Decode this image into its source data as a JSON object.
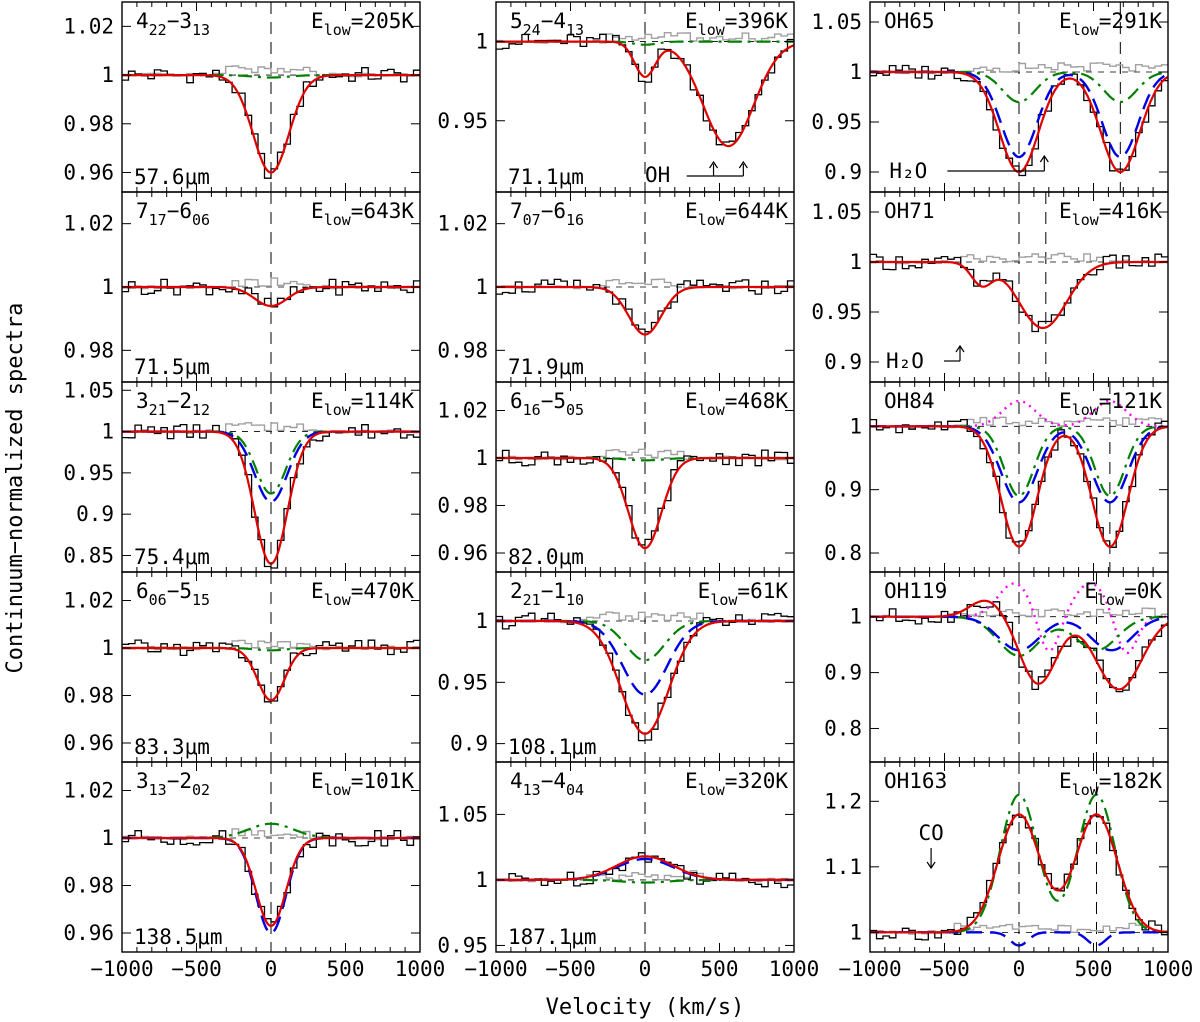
{
  "chart_data": {
    "type": "line",
    "ylabel": "Continuum−normalized spectra",
    "xlabel": "Velocity (km/s)",
    "xlim": [
      -1000,
      1000
    ],
    "xticks": [
      -1000,
      -500,
      0,
      500,
      1000
    ],
    "xtick_labels": [
      "−1000",
      "−500",
      "0",
      "500",
      "1000"
    ],
    "colors": {
      "observed": "#000000",
      "alt_profile": "#a0a0a0",
      "total_model": "#e00000",
      "blue_component": "#0000e0",
      "green_component": "#008000",
      "magenta_component": "#ff00ff"
    },
    "panels": [
      {
        "id": "p1",
        "col": 0,
        "row": 0,
        "label_main": "4",
        "label_sub1": "22",
        "label_sep": "−3",
        "label_sub2": "13",
        "elow_prefix": "E",
        "elow_sub": "low",
        "elow_value": "=205K",
        "wavelength": "57.6μm",
        "ylim": [
          0.952,
          1.03
        ],
        "yticks": [
          0.96,
          0.98,
          1,
          1.02
        ],
        "ytick_labels": [
          "0.96",
          "0.98",
          "1",
          "1.02"
        ],
        "vlines": [
          0
        ],
        "components": [
          {
            "role": "total",
            "depth": 0.04,
            "center": 0,
            "width": 120
          },
          {
            "role": "green",
            "depth": 0.001,
            "center": 0,
            "width": 120
          }
        ],
        "annotation": null
      },
      {
        "id": "p2",
        "col": 1,
        "row": 0,
        "label_main": "5",
        "label_sub1": "24",
        "label_sep": "−4",
        "label_sub2": "13",
        "elow_prefix": "E",
        "elow_sub": "low",
        "elow_value": "=396K",
        "wavelength": "71.1μm",
        "ylim": [
          0.905,
          1.025
        ],
        "yticks": [
          0.95,
          1
        ],
        "ytick_labels": [
          "0.95",
          "1"
        ],
        "vlines": [
          0
        ],
        "components": [
          {
            "role": "total",
            "depth": 0.022,
            "center": 0,
            "width": 70
          },
          {
            "role": "total",
            "depth": 0.066,
            "center": 560,
            "width": 170
          },
          {
            "role": "green",
            "depth": 0.002,
            "center": 0,
            "width": 80
          }
        ],
        "annotation": {
          "text": "OH",
          "kind": "oh-doublet"
        }
      },
      {
        "id": "p3",
        "col": 2,
        "row": 0,
        "label_main": "OH65",
        "elow_prefix": "E",
        "elow_sub": "low",
        "elow_value": "=291K",
        "wavelength": "",
        "ylim": [
          0.88,
          1.07
        ],
        "yticks": [
          0.9,
          0.95,
          1,
          1.05
        ],
        "ytick_labels": [
          "0.9",
          "0.95",
          "1",
          "1.05"
        ],
        "vlines": [
          0,
          680
        ],
        "components": [
          {
            "role": "total",
            "depth": 0.1,
            "center": 0,
            "width": 130
          },
          {
            "role": "total",
            "depth": 0.1,
            "center": 680,
            "width": 130
          },
          {
            "role": "blue",
            "depth": 0.085,
            "center": 0,
            "width": 120
          },
          {
            "role": "blue",
            "depth": 0.085,
            "center": 680,
            "width": 120
          },
          {
            "role": "green",
            "depth": 0.03,
            "center": 0,
            "width": 110
          },
          {
            "role": "green",
            "depth": 0.03,
            "center": 680,
            "width": 110
          }
        ],
        "annotation": {
          "text": "H₂O",
          "kind": "arrow-up-right"
        }
      },
      {
        "id": "p4",
        "col": 0,
        "row": 1,
        "label_main": "7",
        "label_sub1": "17",
        "label_sep": "−6",
        "label_sub2": "06",
        "elow_prefix": "E",
        "elow_sub": "low",
        "elow_value": "=643K",
        "wavelength": "71.5μm",
        "ylim": [
          0.97,
          1.03
        ],
        "yticks": [
          0.98,
          1,
          1.02
        ],
        "ytick_labels": [
          "0.98",
          "1",
          "1.02"
        ],
        "vlines": [
          0
        ],
        "components": [
          {
            "role": "total",
            "depth": 0.006,
            "center": 0,
            "width": 110
          }
        ],
        "annotation": null
      },
      {
        "id": "p5",
        "col": 1,
        "row": 1,
        "label_main": "7",
        "label_sub1": "07",
        "label_sep": "−6",
        "label_sub2": "16",
        "elow_prefix": "E",
        "elow_sub": "low",
        "elow_value": "=644K",
        "wavelength": "71.9μm",
        "ylim": [
          0.97,
          1.03
        ],
        "yticks": [
          0.98,
          1,
          1.02
        ],
        "ytick_labels": [
          "0.98",
          "1",
          "1.02"
        ],
        "vlines": [
          0
        ],
        "components": [
          {
            "role": "total",
            "depth": 0.015,
            "center": 0,
            "width": 110
          }
        ],
        "annotation": null
      },
      {
        "id": "p6",
        "col": 2,
        "row": 1,
        "label_main": "OH71",
        "elow_prefix": "E",
        "elow_sub": "low",
        "elow_value": "=416K",
        "wavelength": "",
        "ylim": [
          0.88,
          1.07
        ],
        "yticks": [
          0.9,
          0.95,
          1,
          1.05
        ],
        "ytick_labels": [
          "0.9",
          "0.95",
          "1",
          "1.05"
        ],
        "vlines": [
          0,
          180
        ],
        "components": [
          {
            "role": "total",
            "depth": 0.022,
            "center": -250,
            "width": 70
          },
          {
            "role": "total",
            "depth": 0.066,
            "center": 160,
            "width": 160
          }
        ],
        "annotation": {
          "text": "H₂O",
          "kind": "arrow-up-right"
        }
      },
      {
        "id": "p7",
        "col": 0,
        "row": 2,
        "label_main": "3",
        "label_sub1": "21",
        "label_sep": "−2",
        "label_sub2": "12",
        "elow_prefix": "E",
        "elow_sub": "low",
        "elow_value": "=114K",
        "wavelength": "75.4μm",
        "ylim": [
          0.83,
          1.06
        ],
        "yticks": [
          0.85,
          0.9,
          0.95,
          1,
          1.05
        ],
        "ytick_labels": [
          "0.85",
          "0.9",
          "0.95",
          "1",
          "1.05"
        ],
        "vlines": [
          0
        ],
        "components": [
          {
            "role": "total",
            "depth": 0.16,
            "center": 0,
            "width": 110
          },
          {
            "role": "blue",
            "depth": 0.085,
            "center": 0,
            "width": 110
          },
          {
            "role": "green",
            "depth": 0.075,
            "center": 0,
            "width": 100
          }
        ],
        "annotation": null
      },
      {
        "id": "p8",
        "col": 1,
        "row": 2,
        "label_main": "6",
        "label_sub1": "16",
        "label_sep": "−5",
        "label_sub2": "05",
        "elow_prefix": "E",
        "elow_sub": "low",
        "elow_value": "=468K",
        "wavelength": "82.0μm",
        "ylim": [
          0.952,
          1.032
        ],
        "yticks": [
          0.96,
          0.98,
          1,
          1.02
        ],
        "ytick_labels": [
          "0.96",
          "0.98",
          "1",
          "1.02"
        ],
        "vlines": [
          0
        ],
        "components": [
          {
            "role": "total",
            "depth": 0.038,
            "center": 0,
            "width": 110
          },
          {
            "role": "green",
            "depth": 0.001,
            "center": 0,
            "width": 120
          }
        ],
        "annotation": null
      },
      {
        "id": "p9",
        "col": 2,
        "row": 2,
        "label_main": "OH84",
        "elow_prefix": "E",
        "elow_sub": "low",
        "elow_value": "=121K",
        "wavelength": "",
        "ylim": [
          0.77,
          1.07
        ],
        "yticks": [
          0.8,
          0.9,
          1
        ],
        "ytick_labels": [
          "0.8",
          "0.9",
          "1"
        ],
        "vlines": [
          0,
          610
        ],
        "components": [
          {
            "role": "total",
            "depth": 0.19,
            "center": 0,
            "width": 120
          },
          {
            "role": "total",
            "depth": 0.19,
            "center": 610,
            "width": 120
          },
          {
            "role": "blue",
            "depth": 0.12,
            "center": 0,
            "width": 120
          },
          {
            "role": "blue",
            "depth": 0.12,
            "center": 610,
            "width": 120
          },
          {
            "role": "green",
            "depth": 0.11,
            "center": 0,
            "width": 100
          },
          {
            "role": "green",
            "depth": 0.11,
            "center": 610,
            "width": 100
          },
          {
            "role": "magenta",
            "depth": -0.04,
            "center": 0,
            "width": 110
          },
          {
            "role": "magenta",
            "depth": -0.04,
            "center": 610,
            "width": 110
          }
        ],
        "annotation": null
      },
      {
        "id": "p10",
        "col": 0,
        "row": 3,
        "label_main": "6",
        "label_sub1": "06",
        "label_sep": "−5",
        "label_sub2": "15",
        "elow_prefix": "E",
        "elow_sub": "low",
        "elow_value": "=470K",
        "wavelength": "83.3μm",
        "ylim": [
          0.952,
          1.032
        ],
        "yticks": [
          0.96,
          0.98,
          1,
          1.02
        ],
        "ytick_labels": [
          "0.96",
          "0.98",
          "1",
          "1.02"
        ],
        "vlines": [
          0
        ],
        "components": [
          {
            "role": "total",
            "depth": 0.022,
            "center": 0,
            "width": 90
          },
          {
            "role": "green",
            "depth": 0.001,
            "center": 0,
            "width": 100
          }
        ],
        "annotation": null
      },
      {
        "id": "p11",
        "col": 1,
        "row": 3,
        "label_main": "2",
        "label_sub1": "21",
        "label_sep": "−1",
        "label_sub2": "10",
        "elow_prefix": "E",
        "elow_sub": "low",
        "elow_value": "=61K",
        "wavelength": "108.1μm",
        "ylim": [
          0.885,
          1.04
        ],
        "yticks": [
          0.9,
          0.95,
          1
        ],
        "ytick_labels": [
          "0.9",
          "0.95",
          "1"
        ],
        "vlines": [
          0
        ],
        "components": [
          {
            "role": "total",
            "depth": 0.092,
            "center": 0,
            "width": 160
          },
          {
            "role": "blue",
            "depth": 0.06,
            "center": 0,
            "width": 150
          },
          {
            "role": "green",
            "depth": 0.032,
            "center": 0,
            "width": 130
          }
        ],
        "annotation": null
      },
      {
        "id": "p12",
        "col": 2,
        "row": 3,
        "label_main": "OH119",
        "elow_prefix": "E",
        "elow_sub": "low",
        "elow_value": "=0K",
        "wavelength": "",
        "ylim": [
          0.74,
          1.08
        ],
        "yticks": [
          0.8,
          0.9,
          1
        ],
        "ytick_labels": [
          "0.8",
          "0.9",
          "1"
        ],
        "vlines": [
          0,
          520
        ],
        "components": [
          {
            "role": "total",
            "depth": -0.03,
            "center": -220,
            "width": 110
          },
          {
            "role": "total",
            "depth": 0.12,
            "center": 130,
            "width": 120
          },
          {
            "role": "total",
            "depth": 0.13,
            "center": 670,
            "width": 150
          },
          {
            "role": "blue",
            "depth": 0.06,
            "center": 0,
            "width": 140
          },
          {
            "role": "blue",
            "depth": 0.06,
            "center": 620,
            "width": 140
          },
          {
            "role": "green",
            "depth": 0.07,
            "center": 0,
            "width": 140
          },
          {
            "role": "green",
            "depth": 0.06,
            "center": 520,
            "width": 140
          },
          {
            "role": "magenta",
            "depth": -0.06,
            "center": -30,
            "width": 110
          },
          {
            "role": "magenta",
            "depth": 0.07,
            "center": 200,
            "width": 70
          },
          {
            "role": "magenta",
            "depth": -0.06,
            "center": 480,
            "width": 110
          },
          {
            "role": "magenta",
            "depth": 0.07,
            "center": 720,
            "width": 70
          }
        ],
        "annotation": null
      },
      {
        "id": "p13",
        "col": 0,
        "row": 4,
        "label_main": "3",
        "label_sub1": "13",
        "label_sep": "−2",
        "label_sub2": "02",
        "elow_prefix": "E",
        "elow_sub": "low",
        "elow_value": "=101K",
        "wavelength": "138.5μm",
        "ylim": [
          0.952,
          1.032
        ],
        "yticks": [
          0.96,
          0.98,
          1,
          1.02
        ],
        "ytick_labels": [
          "0.96",
          "0.98",
          "1",
          "1.02"
        ],
        "vlines": [
          0
        ],
        "components": [
          {
            "role": "total",
            "depth": 0.037,
            "center": 0,
            "width": 100
          },
          {
            "role": "blue",
            "depth": 0.04,
            "center": 0,
            "width": 100
          },
          {
            "role": "green",
            "depth": -0.006,
            "center": 0,
            "width": 150
          }
        ],
        "annotation": null
      },
      {
        "id": "p14",
        "col": 1,
        "row": 4,
        "label_main": "4",
        "label_sub1": "13",
        "label_sep": "−4",
        "label_sub2": "04",
        "elow_prefix": "E",
        "elow_sub": "low",
        "elow_value": "=320K",
        "wavelength": "187.1μm",
        "ylim": [
          0.945,
          1.09
        ],
        "yticks": [
          0.95,
          1,
          1.05
        ],
        "ytick_labels": [
          "0.95",
          "1",
          "1.05"
        ],
        "vlines": [
          0
        ],
        "components": [
          {
            "role": "total",
            "depth": -0.018,
            "center": 0,
            "width": 190
          },
          {
            "role": "blue",
            "depth": -0.016,
            "center": 0,
            "width": 190
          },
          {
            "role": "green",
            "depth": 0.002,
            "center": 0,
            "width": 150
          }
        ],
        "annotation": null
      },
      {
        "id": "p15",
        "col": 2,
        "row": 4,
        "label_main": "OH163",
        "elow_prefix": "E",
        "elow_sub": "low",
        "elow_value": "=182K",
        "wavelength": "",
        "ylim": [
          0.97,
          1.26
        ],
        "yticks": [
          1,
          1.1,
          1.2
        ],
        "ytick_labels": [
          "1",
          "1.1",
          "1.2"
        ],
        "vlines": [
          0,
          520
        ],
        "components": [
          {
            "role": "total",
            "depth": -0.18,
            "center": 0,
            "width": 140
          },
          {
            "role": "total",
            "depth": -0.18,
            "center": 520,
            "width": 140
          },
          {
            "role": "green",
            "depth": -0.21,
            "center": 0,
            "width": 125
          },
          {
            "role": "green",
            "depth": -0.21,
            "center": 520,
            "width": 125
          },
          {
            "role": "blue",
            "depth": 0.02,
            "center": 0,
            "width": 60
          },
          {
            "role": "blue",
            "depth": 0.02,
            "center": 520,
            "width": 60
          }
        ],
        "annotation": {
          "text": "CO",
          "kind": "arrow-down"
        }
      }
    ]
  }
}
